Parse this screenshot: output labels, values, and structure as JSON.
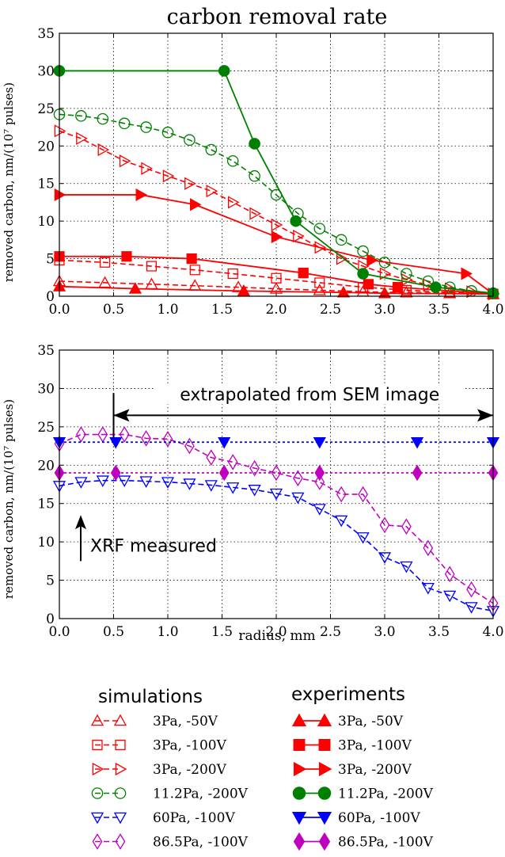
{
  "chart_data": [
    {
      "type": "line",
      "title": "carbon removal rate",
      "xlabel": "",
      "ylabel": "removed carbon, nm/(10⁷ pulses)",
      "xlim": [
        0,
        4
      ],
      "ylim": [
        0,
        35
      ],
      "xticks": [
        "0.0",
        "0.5",
        "1.0",
        "1.5",
        "2.0",
        "2.5",
        "3.0",
        "3.5",
        "4.0"
      ],
      "yticks": [
        "0",
        "5",
        "10",
        "15",
        "20",
        "25",
        "30",
        "35"
      ],
      "grid": true,
      "series": [
        {
          "name": "3Pa, -50V",
          "kind": "simulation",
          "color": "#ff0000",
          "marker": "triangle-up",
          "x": [
            0.0,
            0.42,
            0.85,
            1.25,
            1.65,
            2.0,
            2.4,
            2.8,
            3.2,
            3.6,
            4.0
          ],
          "y": [
            2.0,
            1.8,
            1.6,
            1.4,
            1.2,
            1.0,
            0.8,
            0.6,
            0.5,
            0.4,
            0.3
          ]
        },
        {
          "name": "3Pa, -100V",
          "kind": "simulation",
          "color": "#ff0000",
          "marker": "square",
          "x": [
            0.0,
            0.42,
            0.85,
            1.25,
            1.6,
            2.0,
            2.4,
            2.8,
            3.2,
            3.6,
            4.0
          ],
          "y": [
            4.8,
            4.5,
            4.0,
            3.5,
            3.0,
            2.4,
            1.8,
            1.2,
            0.8,
            0.5,
            0.3
          ]
        },
        {
          "name": "3Pa, -200V",
          "kind": "simulation",
          "color": "#ff0000",
          "marker": "triangle-right",
          "x": [
            0.0,
            0.2,
            0.4,
            0.6,
            0.8,
            1.0,
            1.2,
            1.4,
            1.6,
            1.8,
            2.0,
            2.2,
            2.4,
            2.6,
            2.8,
            3.0,
            3.2,
            3.4,
            3.6,
            3.8,
            4.0
          ],
          "y": [
            22,
            21,
            19.5,
            18,
            17,
            16,
            15,
            14,
            12.5,
            11,
            9.5,
            8,
            6.5,
            5,
            4,
            3,
            2.2,
            1.5,
            1.0,
            0.6,
            0.3
          ]
        },
        {
          "name": "11.2Pa, -200V",
          "kind": "simulation",
          "color": "#008000",
          "marker": "circle",
          "x": [
            0.0,
            0.2,
            0.4,
            0.6,
            0.8,
            1.0,
            1.2,
            1.4,
            1.6,
            1.8,
            2.0,
            2.2,
            2.4,
            2.6,
            2.8,
            3.0,
            3.2,
            3.4,
            3.6,
            3.8,
            4.0
          ],
          "y": [
            24.2,
            24.0,
            23.6,
            23.0,
            22.5,
            21.8,
            20.8,
            19.5,
            18.0,
            16.0,
            13.5,
            11.0,
            9.0,
            7.5,
            6.0,
            4.5,
            3.0,
            2.0,
            1.2,
            0.7,
            0.4
          ]
        },
        {
          "name": "3Pa, -50V",
          "kind": "experiment",
          "color": "#ff0000",
          "marker": "triangle-up",
          "x": [
            0.0,
            0.7,
            1.7,
            2.62,
            3.0,
            4.0
          ],
          "y": [
            1.3,
            1.0,
            0.7,
            0.5,
            0.4,
            0.3
          ]
        },
        {
          "name": "3Pa, -100V",
          "kind": "experiment",
          "color": "#ff0000",
          "marker": "square",
          "x": [
            0.0,
            0.62,
            1.22,
            2.25,
            2.85,
            3.12,
            4.0
          ],
          "y": [
            5.3,
            5.3,
            5.0,
            3.1,
            1.6,
            1.2,
            0.3
          ]
        },
        {
          "name": "3Pa, -200V",
          "kind": "experiment",
          "color": "#ff0000",
          "marker": "triangle-right",
          "x": [
            0.0,
            0.75,
            1.25,
            2.0,
            2.88,
            3.75,
            4.0
          ],
          "y": [
            13.5,
            13.5,
            12.2,
            7.9,
            4.8,
            3.0,
            0.3
          ]
        },
        {
          "name": "11.2Pa, -200V",
          "kind": "experiment",
          "color": "#008000",
          "marker": "circle",
          "x": [
            0.0,
            1.52,
            1.8,
            2.18,
            2.8,
            3.47,
            4.0
          ],
          "y": [
            30.0,
            30.0,
            20.3,
            10.0,
            3.0,
            1.2,
            0.4
          ]
        }
      ]
    },
    {
      "type": "line",
      "title": "",
      "xlabel": "radius, mm",
      "ylabel": "removed carbon, nm/(10⁷ pulses)",
      "xlim": [
        0,
        4
      ],
      "ylim": [
        0,
        35
      ],
      "xticks": [
        "0.0",
        "0.5",
        "1.0",
        "1.5",
        "2.0",
        "2.5",
        "3.0",
        "3.5",
        "4.0"
      ],
      "yticks": [
        "0",
        "5",
        "10",
        "15",
        "20",
        "25",
        "30",
        "35"
      ],
      "grid": true,
      "annotations": [
        {
          "text": "extrapolated from SEM image",
          "arrow": "double",
          "from_x": 0.5,
          "to_x": 4.0,
          "y": 26.5
        },
        {
          "text": "XRF measured",
          "arrow": "up",
          "x": 0.2,
          "y_from": 7.5,
          "y_to": 13.5
        }
      ],
      "series": [
        {
          "name": "60Pa, -100V",
          "kind": "simulation",
          "color": "#0000ff",
          "marker": "triangle-down",
          "x": [
            0.0,
            0.2,
            0.4,
            0.6,
            0.8,
            1.0,
            1.2,
            1.4,
            1.6,
            1.8,
            2.0,
            2.2,
            2.4,
            2.6,
            2.8,
            3.0,
            3.2,
            3.4,
            3.6,
            3.8,
            4.0
          ],
          "y": [
            17.3,
            17.8,
            18.0,
            18.0,
            17.9,
            17.8,
            17.6,
            17.4,
            17.1,
            16.8,
            16.3,
            15.8,
            14.3,
            12.8,
            10.6,
            8.0,
            6.8,
            4.0,
            3.0,
            1.5,
            1.0
          ]
        },
        {
          "name": "86.5Pa, -100V",
          "kind": "simulation",
          "color": "#c000c0",
          "marker": "diamond",
          "x": [
            0.0,
            0.2,
            0.4,
            0.6,
            0.8,
            1.0,
            1.2,
            1.4,
            1.6,
            1.8,
            2.0,
            2.2,
            2.4,
            2.6,
            2.8,
            3.0,
            3.2,
            3.4,
            3.6,
            3.8,
            4.0
          ],
          "y": [
            22.8,
            24.0,
            24.0,
            24.0,
            23.5,
            23.4,
            22.5,
            21.0,
            20.4,
            19.6,
            19.0,
            18.3,
            17.8,
            16.2,
            16.2,
            12.2,
            12.0,
            9.2,
            5.8,
            3.8,
            2.0
          ]
        },
        {
          "name": "60Pa, -100V",
          "kind": "experiment",
          "color": "#0000ff",
          "marker": "triangle-down",
          "x": [
            0.0,
            0.52,
            1.52,
            2.4,
            3.3,
            4.0
          ],
          "y": [
            23.0,
            23.0,
            23.0,
            23.0,
            23.0,
            23.0
          ]
        },
        {
          "name": "86.5Pa, -100V",
          "kind": "experiment",
          "color": "#c000c0",
          "marker": "diamond",
          "x": [
            0.0,
            0.52,
            1.52,
            2.4,
            3.3,
            4.0
          ],
          "y": [
            19.0,
            19.0,
            19.0,
            19.0,
            19.0,
            19.0
          ]
        }
      ]
    }
  ],
  "legend": {
    "simulations_title": "simulations",
    "experiments_title": "experiments",
    "entries": [
      {
        "label": "3Pa, -50V",
        "color": "#ff0000",
        "marker": "triangle-up"
      },
      {
        "label": "3Pa, -100V",
        "color": "#ff0000",
        "marker": "square"
      },
      {
        "label": "3Pa, -200V",
        "color": "#ff0000",
        "marker": "triangle-right"
      },
      {
        "label": "11.2Pa, -200V",
        "color": "#008000",
        "marker": "circle"
      },
      {
        "label": "60Pa, -100V",
        "color": "#0000ff",
        "marker": "triangle-down"
      },
      {
        "label": "86.5Pa, -100V",
        "color": "#c000c0",
        "marker": "diamond"
      }
    ]
  }
}
